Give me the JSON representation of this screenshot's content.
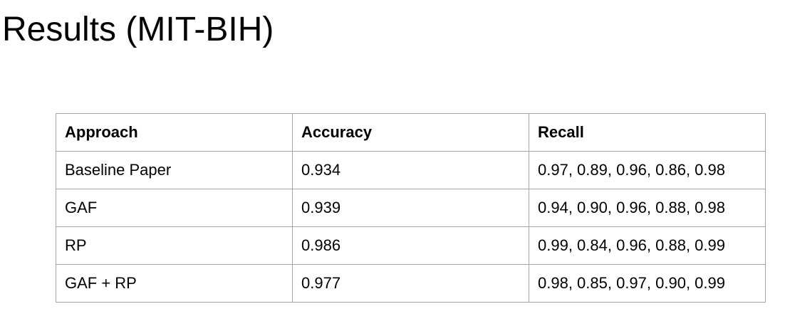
{
  "page": {
    "title": "Results (MIT-BIH)"
  },
  "table": {
    "headers": [
      "Approach",
      "Accuracy",
      "Recall"
    ],
    "rows": [
      {
        "approach": "Baseline Paper",
        "accuracy": "0.934",
        "recall": "0.97, 0.89, 0.96, 0.86, 0.98"
      },
      {
        "approach": "GAF",
        "accuracy": "0.939",
        "recall": "0.94, 0.90, 0.96, 0.88, 0.98"
      },
      {
        "approach": "RP",
        "accuracy": "0.986",
        "recall": "0.99, 0.84, 0.96, 0.88, 0.99"
      },
      {
        "approach": "GAF + RP",
        "accuracy": "0.977",
        "recall": "0.98, 0.85, 0.97, 0.90, 0.99"
      }
    ]
  }
}
